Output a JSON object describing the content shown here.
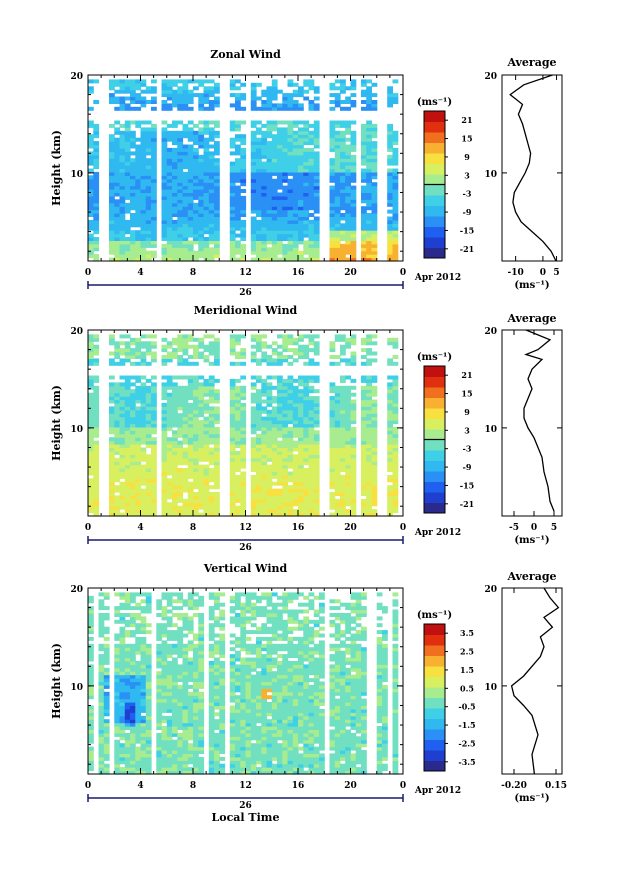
{
  "chart_data": [
    {
      "type": "heatmap",
      "title": "Zonal Wind",
      "ylabel": "Height (km)",
      "xlabel": "",
      "x_ticks": [
        "0",
        "4",
        "8",
        "12",
        "16",
        "20",
        "0"
      ],
      "xlim": [
        0,
        24
      ],
      "y_ticks": [
        "10",
        "20"
      ],
      "ylim": [
        1,
        20
      ],
      "date_day": "26",
      "date_label": "Apr 2012",
      "colorbar": {
        "unit": "(ms⁻¹)",
        "ticks": [
          "21",
          "15",
          "9",
          "3",
          "-3",
          "-9",
          "-15",
          "-21"
        ],
        "range": [
          -24,
          24
        ],
        "zero_line": 0
      },
      "profile": {
        "title": "Average",
        "x_ticks": [
          "-10",
          "0",
          "5"
        ],
        "xlim": [
          -15,
          7
        ],
        "xlabel": "(ms⁻¹)",
        "y_ticks": [
          "10",
          "20"
        ],
        "points": [
          [
            4.8,
            1
          ],
          [
            3,
            2
          ],
          [
            0,
            3
          ],
          [
            -4,
            4
          ],
          [
            -8,
            5
          ],
          [
            -10,
            6
          ],
          [
            -11,
            7
          ],
          [
            -10.5,
            8
          ],
          [
            -8.5,
            9
          ],
          [
            -6.5,
            10
          ],
          [
            -5,
            11
          ],
          [
            -4.5,
            12
          ],
          [
            -5.5,
            13
          ],
          [
            -6.5,
            14
          ],
          [
            -7.5,
            15
          ],
          [
            -9,
            16
          ],
          [
            -7.5,
            17
          ],
          [
            -12,
            18
          ],
          [
            -7,
            19
          ],
          [
            3.5,
            20
          ]
        ]
      },
      "data_field": "zonal",
      "gaps": [
        [
          1.0,
          1.4
        ],
        [
          5.3,
          5.6
        ],
        [
          10.4,
          10.8
        ],
        [
          12.1,
          12.4
        ],
        [
          17.8,
          18.3
        ],
        [
          20.4,
          20.7
        ],
        [
          22.3,
          22.5
        ]
      ]
    },
    {
      "type": "heatmap",
      "title": "Meridional Wind",
      "ylabel": "Height (km)",
      "xlabel": "",
      "x_ticks": [
        "0",
        "4",
        "8",
        "12",
        "16",
        "20",
        "0"
      ],
      "xlim": [
        0,
        24
      ],
      "y_ticks": [
        "10",
        "20"
      ],
      "ylim": [
        1,
        20
      ],
      "date_day": "26",
      "date_label": "Apr 2012",
      "colorbar": {
        "unit": "(ms⁻¹)",
        "ticks": [
          "21",
          "15",
          "9",
          "3",
          "-3",
          "-9",
          "-15",
          "-21"
        ],
        "range": [
          -24,
          24
        ],
        "zero_line": 0
      },
      "profile": {
        "title": "Average",
        "x_ticks": [
          "-5",
          "0",
          "5"
        ],
        "xlim": [
          -8,
          7
        ],
        "xlabel": "(ms⁻¹)",
        "y_ticks": [
          "10",
          "20"
        ],
        "points": [
          [
            5,
            1.5
          ],
          [
            4,
            2.5
          ],
          [
            3.5,
            4
          ],
          [
            2.5,
            5.5
          ],
          [
            2,
            7
          ],
          [
            1,
            8
          ],
          [
            0,
            9
          ],
          [
            -1.5,
            10
          ],
          [
            -2.5,
            11
          ],
          [
            -2.5,
            12
          ],
          [
            -1.5,
            13
          ],
          [
            -0.5,
            14
          ],
          [
            -1.5,
            15
          ],
          [
            -0.5,
            16
          ],
          [
            2,
            17
          ],
          [
            -2,
            17.5
          ],
          [
            1,
            18
          ],
          [
            4,
            19
          ],
          [
            -2,
            20
          ]
        ]
      },
      "data_field": "meridional",
      "gaps": [
        [
          1.0,
          1.4
        ],
        [
          5.3,
          5.6
        ],
        [
          10.4,
          10.8
        ],
        [
          12.1,
          12.4
        ],
        [
          17.8,
          18.3
        ],
        [
          20.4,
          20.7
        ],
        [
          22.3,
          22.5
        ]
      ]
    },
    {
      "type": "heatmap",
      "title": "Vertical Wind",
      "ylabel": "Height (km)",
      "xlabel": "Local Time",
      "x_ticks": [
        "0",
        "4",
        "8",
        "12",
        "16",
        "20",
        "0"
      ],
      "xlim": [
        0,
        24
      ],
      "y_ticks": [
        "10",
        "20"
      ],
      "ylim": [
        1,
        20
      ],
      "date_day": "26",
      "date_label": "Apr 2012",
      "colorbar": {
        "unit": "(ms⁻¹)",
        "ticks": [
          "3.5",
          "2.5",
          "1.5",
          "0.5",
          "-0.5",
          "-1.5",
          "-2.5",
          "-3.5"
        ],
        "range": [
          -4,
          4
        ],
        "zero_line": null
      },
      "profile": {
        "title": "Average",
        "x_ticks": [
          "-0.20",
          "0.15"
        ],
        "xlim": [
          -0.3,
          0.2
        ],
        "xlabel": "(ms⁻¹)",
        "y_ticks": [
          "10",
          "20"
        ],
        "points": [
          [
            -0.03,
            1
          ],
          [
            -0.05,
            3
          ],
          [
            0.0,
            5
          ],
          [
            -0.05,
            7
          ],
          [
            -0.12,
            8
          ],
          [
            -0.2,
            9
          ],
          [
            -0.22,
            10
          ],
          [
            -0.12,
            11
          ],
          [
            -0.05,
            12
          ],
          [
            0.02,
            13
          ],
          [
            0.05,
            14
          ],
          [
            0.02,
            15
          ],
          [
            0.12,
            16
          ],
          [
            0.05,
            17
          ],
          [
            0.17,
            18
          ],
          [
            0.1,
            19
          ],
          [
            0.05,
            20
          ]
        ]
      },
      "data_field": "vertical",
      "gaps": [
        [
          0.5,
          0.7
        ],
        [
          1.8,
          2.0
        ],
        [
          4.8,
          5.0
        ],
        [
          9.0,
          9.1
        ],
        [
          10.6,
          10.8
        ],
        [
          18.0,
          18.3
        ],
        [
          21.3,
          21.6
        ],
        [
          22.8,
          23.0
        ]
      ]
    }
  ]
}
